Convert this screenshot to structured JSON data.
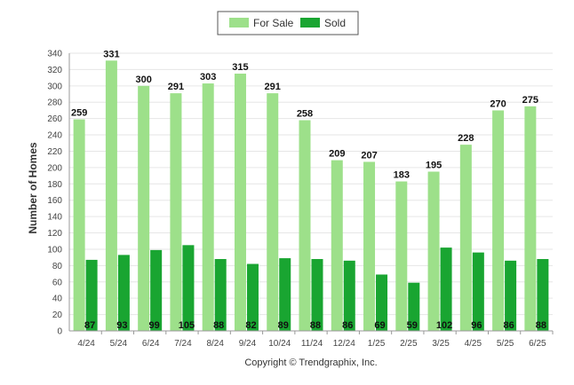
{
  "chart_data": {
    "type": "bar",
    "categories": [
      "4/24",
      "5/24",
      "6/24",
      "7/24",
      "8/24",
      "9/24",
      "10/24",
      "11/24",
      "12/24",
      "1/25",
      "2/25",
      "3/25",
      "4/25",
      "5/25",
      "6/25"
    ],
    "series": [
      {
        "name": "For Sale",
        "color": "#9de08a",
        "values": [
          259,
          331,
          300,
          291,
          303,
          315,
          291,
          258,
          209,
          207,
          183,
          195,
          228,
          270,
          275
        ]
      },
      {
        "name": "Sold",
        "color": "#19a531",
        "values": [
          87,
          93,
          99,
          105,
          88,
          82,
          89,
          88,
          86,
          69,
          59,
          102,
          96,
          86,
          88
        ]
      }
    ],
    "title": "",
    "xlabel": "",
    "ylabel": "Number of Homes",
    "ylim": [
      0,
      340
    ],
    "yticks": [
      0,
      20,
      40,
      60,
      80,
      100,
      120,
      140,
      160,
      180,
      200,
      220,
      240,
      260,
      280,
      300,
      320,
      340
    ],
    "grid": true,
    "legend_position": "top-center"
  },
  "footer": {
    "copyright": "Copyright © Trendgraphix, Inc."
  }
}
